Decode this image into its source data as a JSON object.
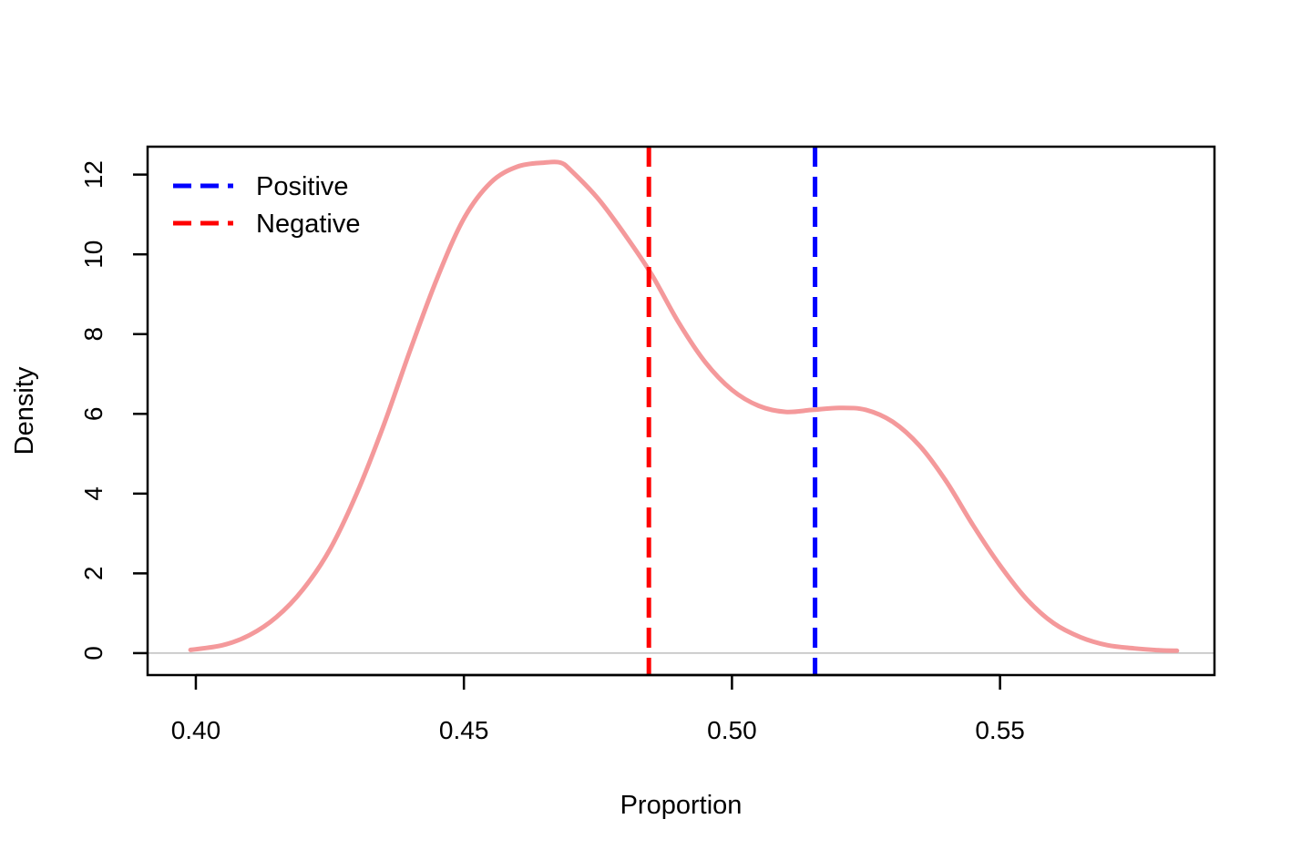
{
  "chart_data": {
    "type": "line",
    "title": "",
    "xlabel": "Proportion",
    "ylabel": "Density",
    "xlim": [
      0.391,
      0.59
    ],
    "ylim": [
      -0.55,
      12.7
    ],
    "x_ticks": [
      0.4,
      0.45,
      0.5,
      0.55
    ],
    "x_tick_labels": [
      "0.40",
      "0.45",
      "0.50",
      "0.55"
    ],
    "y_ticks": [
      0,
      2,
      4,
      6,
      8,
      10,
      12
    ],
    "y_tick_labels": [
      "0",
      "2",
      "4",
      "6",
      "8",
      "10",
      "12"
    ],
    "grid": false,
    "zero_baseline": true,
    "legend_position": "top-left",
    "series": [
      {
        "color": "#f4999b",
        "style": "solid",
        "x": [
          0.399,
          0.405,
          0.41,
          0.415,
          0.42,
          0.425,
          0.43,
          0.435,
          0.44,
          0.445,
          0.45,
          0.455,
          0.46,
          0.465,
          0.468,
          0.47,
          0.475,
          0.48,
          0.485,
          0.49,
          0.495,
          0.5,
          0.505,
          0.51,
          0.515,
          0.52,
          0.525,
          0.53,
          0.535,
          0.54,
          0.545,
          0.55,
          0.555,
          0.56,
          0.565,
          0.57,
          0.575,
          0.58,
          0.583
        ],
        "y": [
          0.08,
          0.2,
          0.45,
          0.9,
          1.6,
          2.6,
          4.0,
          5.7,
          7.6,
          9.4,
          10.9,
          11.8,
          12.2,
          12.3,
          12.3,
          12.1,
          11.4,
          10.5,
          9.5,
          8.3,
          7.3,
          6.6,
          6.2,
          6.05,
          6.1,
          6.15,
          6.1,
          5.8,
          5.2,
          4.3,
          3.2,
          2.2,
          1.35,
          0.75,
          0.4,
          0.2,
          0.12,
          0.07,
          0.06
        ]
      }
    ],
    "vlines": [
      {
        "name": "Positive",
        "x": 0.5155,
        "color": "#0000ff",
        "style": "dashed"
      },
      {
        "name": "Negative",
        "x": 0.4845,
        "color": "#ff0000",
        "style": "dashed"
      }
    ]
  }
}
